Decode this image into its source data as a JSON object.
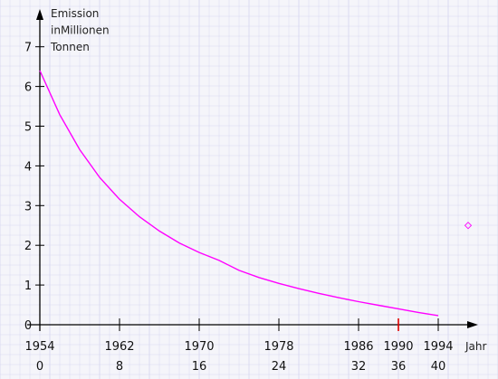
{
  "chart_data": {
    "type": "line",
    "ylabel_lines": [
      "Emission",
      "inMillionen",
      "Tonnen"
    ],
    "xlabel": "Jahr",
    "y_ticks": [
      0,
      1,
      2,
      3,
      4,
      5,
      6,
      7
    ],
    "x_ticks_years": [
      "1954",
      "1962",
      "1970",
      "1978",
      "1986",
      "1990",
      "1994"
    ],
    "x_ticks_index": [
      "0",
      "8",
      "16",
      "24",
      "32",
      "36",
      "40"
    ],
    "x_tick_values": [
      0,
      8,
      16,
      24,
      32,
      36,
      40
    ],
    "xlim": [
      0,
      43
    ],
    "ylim": [
      0,
      7.6
    ],
    "highlight_tick": 5,
    "series": [
      {
        "x": [
          0,
          2,
          4,
          6,
          8,
          10,
          12,
          14,
          16,
          18,
          20,
          22,
          24,
          26,
          28,
          30,
          32,
          34,
          36,
          38,
          40
        ],
        "y": [
          6.4,
          5.29,
          4.41,
          3.71,
          3.16,
          2.72,
          2.36,
          2.06,
          1.82,
          1.62,
          1.37,
          1.19,
          1.04,
          0.91,
          0.79,
          0.68,
          0.58,
          0.49,
          0.4,
          0.31,
          0.23
        ],
        "color": "#ff00ff"
      }
    ],
    "extra_point": {
      "x": 43,
      "y": 2.5,
      "color": "#ff00ff"
    },
    "colors": {
      "grid": "#d8d8f0",
      "axis": "#000000",
      "highlight": "#dd0000",
      "curve": "#ff00ff"
    }
  }
}
